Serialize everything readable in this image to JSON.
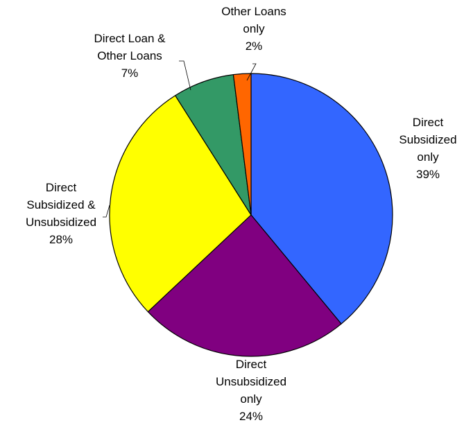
{
  "chart_data": {
    "type": "pie",
    "title": "",
    "legend": "none",
    "start_angle_deg": 0,
    "direction": "clockwise",
    "slices": [
      {
        "lines": [
          "Direct",
          "Subsidized",
          "only"
        ],
        "pct_label": "39%",
        "value": 39,
        "color": "#3366FF"
      },
      {
        "lines": [
          "Direct",
          "Unsubsidized",
          "only"
        ],
        "pct_label": "24%",
        "value": 24,
        "color": "#800080"
      },
      {
        "lines": [
          "Direct",
          "Subsidized &",
          "Unsubsidized"
        ],
        "pct_label": "28%",
        "value": 28,
        "color": "#FFFF00"
      },
      {
        "lines": [
          "Direct Loan &",
          "Other Loans"
        ],
        "pct_label": "7%",
        "value": 7,
        "color": "#339966"
      },
      {
        "lines": [
          "Other Loans",
          "only"
        ],
        "pct_label": "2%",
        "value": 2,
        "color": "#FF6600"
      }
    ]
  }
}
